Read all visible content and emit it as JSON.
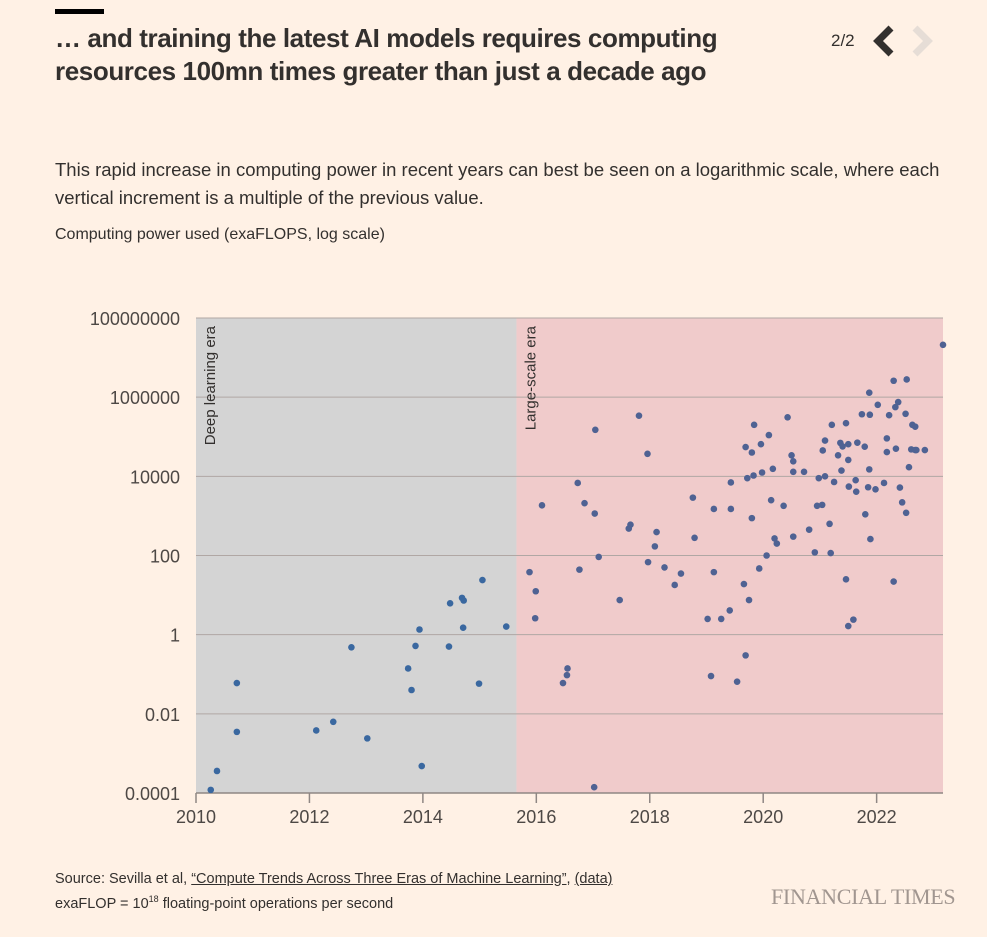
{
  "header": {
    "title": "… and training the latest AI models requires computing resources 100mn times greater than just a decade ago",
    "pager": {
      "count": "2/2",
      "prev_icon": "chevron-left-icon",
      "next_icon": "chevron-right-icon",
      "next_disabled": true
    }
  },
  "description": "This rapid increase in computing power in recent years can best be seen on a logarithmic scale, where each vertical increment is a multiple of the previous value.",
  "unit_label": "Computing power used (exaFLOPS, log scale)",
  "colors": {
    "background": "#fff1e5",
    "deep_era": "#d4d4d4",
    "large_era": "#f0cbcb",
    "point": "#4f6293",
    "point_deep": "#3a68a0",
    "grid": "#b0a7a4"
  },
  "chart_data": {
    "type": "scatter",
    "title": "",
    "xlabel": "",
    "ylabel": "Computing power used (exaFLOPS, log scale)",
    "yscale": "log",
    "xlim": [
      2010,
      2023.17
    ],
    "ylim": [
      0.0001,
      100000000
    ],
    "grid": true,
    "x_ticks": [
      2010,
      2012,
      2014,
      2016,
      2018,
      2020,
      2022
    ],
    "x_tick_labels": [
      "2010",
      "2012",
      "2014",
      "2016",
      "2018",
      "2020",
      "2022"
    ],
    "y_ticks": [
      0.0001,
      0.01,
      1,
      100,
      10000,
      1000000,
      100000000
    ],
    "y_tick_labels": [
      "0.0001",
      "0.01",
      "1",
      "100",
      "10000",
      "1000000",
      "100000000"
    ],
    "eras": [
      {
        "name": "Deep learning era",
        "start": 2010,
        "end": 2015.65
      },
      {
        "name": "Large-scale era",
        "start": 2015.65,
        "end": 2023.17
      }
    ],
    "points": [
      [
        2010.26,
        0.00012
      ],
      [
        2010.37,
        0.00036
      ],
      [
        2010.72,
        0.0035
      ],
      [
        2010.72,
        0.06
      ],
      [
        2012.12,
        0.0038
      ],
      [
        2012.42,
        0.0063
      ],
      [
        2012.74,
        0.48
      ],
      [
        2013.02,
        0.0024
      ],
      [
        2013.74,
        0.14
      ],
      [
        2013.8,
        0.04
      ],
      [
        2013.87,
        0.52
      ],
      [
        2013.94,
        1.35
      ],
      [
        2013.98,
        0.00048
      ],
      [
        2014.46,
        0.5
      ],
      [
        2014.48,
        6.2
      ],
      [
        2014.69,
        8.5
      ],
      [
        2014.71,
        1.5
      ],
      [
        2014.72,
        7.3
      ],
      [
        2014.99,
        0.058
      ],
      [
        2015.05,
        24
      ],
      [
        2015.47,
        1.6
      ],
      [
        2015.88,
        38
      ],
      [
        2015.98,
        2.6
      ],
      [
        2015.99,
        12.5
      ],
      [
        2016.1,
        1850
      ],
      [
        2016.47,
        0.06
      ],
      [
        2016.54,
        0.095
      ],
      [
        2016.55,
        0.14
      ],
      [
        2016.73,
        6800
      ],
      [
        2016.76,
        44
      ],
      [
        2016.85,
        2100
      ],
      [
        2017.02,
        0.00014
      ],
      [
        2017.03,
        1150
      ],
      [
        2017.04,
        150000
      ],
      [
        2017.1,
        92
      ],
      [
        2017.47,
        7.5
      ],
      [
        2017.63,
        480
      ],
      [
        2017.66,
        600
      ],
      [
        2017.81,
        340000
      ],
      [
        2017.96,
        37000
      ],
      [
        2017.97,
        68
      ],
      [
        2018.09,
        170
      ],
      [
        2018.12,
        390
      ],
      [
        2018.26,
        50
      ],
      [
        2018.44,
        18
      ],
      [
        2018.55,
        35
      ],
      [
        2018.76,
        2900
      ],
      [
        2018.79,
        280
      ],
      [
        2019.02,
        2.5
      ],
      [
        2019.08,
        0.09
      ],
      [
        2019.13,
        1500
      ],
      [
        2019.13,
        38
      ],
      [
        2019.26,
        2.5
      ],
      [
        2019.41,
        4.1
      ],
      [
        2019.43,
        7000
      ],
      [
        2019.43,
        1500
      ],
      [
        2019.54,
        0.065
      ],
      [
        2019.66,
        19
      ],
      [
        2019.69,
        0.3
      ],
      [
        2019.69,
        55000
      ],
      [
        2019.72,
        9000
      ],
      [
        2019.75,
        7.5
      ],
      [
        2019.8,
        880
      ],
      [
        2019.8,
        40000
      ],
      [
        2019.83,
        10500
      ],
      [
        2019.84,
        200000
      ],
      [
        2019.93,
        47
      ],
      [
        2019.96,
        65000
      ],
      [
        2019.98,
        12500
      ],
      [
        2020.06,
        100
      ],
      [
        2020.1,
        110000
      ],
      [
        2020.14,
        2500
      ],
      [
        2020.17,
        15500
      ],
      [
        2020.2,
        270
      ],
      [
        2020.24,
        200
      ],
      [
        2020.36,
        1800
      ],
      [
        2020.43,
        310000
      ],
      [
        2020.5,
        34000
      ],
      [
        2020.53,
        300
      ],
      [
        2020.53,
        13000
      ],
      [
        2020.53,
        24000
      ],
      [
        2020.72,
        13000
      ],
      [
        2020.81,
        450
      ],
      [
        2020.91,
        120
      ],
      [
        2020.95,
        1800
      ],
      [
        2020.98,
        9000
      ],
      [
        2021.04,
        1900
      ],
      [
        2021.05,
        45000
      ],
      [
        2021.09,
        80000
      ],
      [
        2021.09,
        10000
      ],
      [
        2021.17,
        630
      ],
      [
        2021.19,
        115
      ],
      [
        2021.21,
        200000
      ],
      [
        2021.25,
        7200
      ],
      [
        2021.32,
        34000
      ],
      [
        2021.36,
        70000
      ],
      [
        2021.38,
        14000
      ],
      [
        2021.4,
        57000
      ],
      [
        2021.46,
        220000
      ],
      [
        2021.46,
        25
      ],
      [
        2021.5,
        26000
      ],
      [
        2021.5,
        65000
      ],
      [
        2021.51,
        5500
      ],
      [
        2021.5,
        1.65
      ],
      [
        2021.59,
        2.4
      ],
      [
        2021.63,
        8000
      ],
      [
        2021.64,
        4100
      ],
      [
        2021.66,
        71000
      ],
      [
        2021.74,
        370000
      ],
      [
        2021.79,
        56000
      ],
      [
        2021.8,
        1100
      ],
      [
        2021.85,
        5300
      ],
      [
        2021.87,
        15000
      ],
      [
        2021.88,
        360000
      ],
      [
        2021.89,
        260
      ],
      [
        2021.87,
        1300000
      ],
      [
        2021.98,
        4700
      ],
      [
        2022.02,
        640000
      ],
      [
        2022.13,
        6800
      ],
      [
        2022.18,
        91000
      ],
      [
        2022.18,
        41000
      ],
      [
        2022.22,
        350000
      ],
      [
        2022.3,
        2600000
      ],
      [
        2022.33,
        560000
      ],
      [
        2022.34,
        50000
      ],
      [
        2022.38,
        750000
      ],
      [
        2022.41,
        5200
      ],
      [
        2022.45,
        2200
      ],
      [
        2022.51,
        380000
      ],
      [
        2022.52,
        1200
      ],
      [
        2022.53,
        2800000
      ],
      [
        2022.57,
        17000
      ],
      [
        2022.61,
        48000
      ],
      [
        2022.63,
        200000
      ],
      [
        2022.68,
        180000
      ],
      [
        2022.68,
        46000
      ],
      [
        2022.7,
        46000
      ],
      [
        2022.85,
        46000
      ],
      [
        2022.3,
        22
      ],
      [
        2023.17,
        21000000
      ]
    ]
  },
  "footer": {
    "source_prefix": "Source: Sevilla et al, ",
    "source_link": "“Compute Trends Across Three Eras of Machine Learning”",
    "source_sep": ", ",
    "data_link": "(data)",
    "note_prefix": "exaFLOP = 10",
    "note_sup": "18",
    "note_suffix": " floating-point operations per second",
    "logo": "FINANCIAL TIMES"
  }
}
